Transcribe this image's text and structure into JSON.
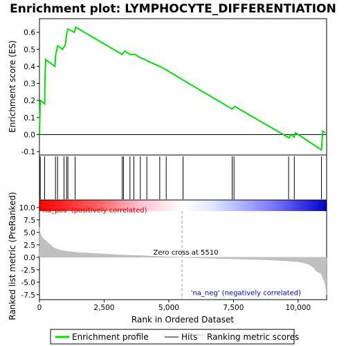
{
  "chart_data": [
    {
      "type": "line",
      "title": "Enrichment plot: LYMPHOCYTE_DIFFERENTIATION",
      "ylabel": "Enrichment score (ES)",
      "xlim": [
        0,
        11100
      ],
      "ylim": [
        -0.12,
        0.68
      ],
      "yticks": [
        -0.1,
        0.0,
        0.1,
        0.2,
        0.3,
        0.4,
        0.5,
        0.6
      ],
      "ytick_labels": [
        "-0.1",
        "0.0",
        "0.1",
        "0.2",
        "0.3",
        "0.4",
        "0.5",
        "0.6"
      ],
      "grid": false,
      "series": [
        {
          "name": "Enrichment profile",
          "color": "#00e000",
          "x": [
            0,
            30,
            50,
            200,
            210,
            240,
            600,
            620,
            700,
            900,
            1000,
            1050,
            1100,
            1350,
            1400,
            3200,
            3250,
            3300,
            3500,
            3550,
            3700,
            3900,
            4100,
            4200,
            4650,
            4900,
            5550,
            7450,
            7550,
            9650,
            9700,
            9850,
            9900,
            10900,
            10950,
            11050
          ],
          "y": [
            0.0,
            0.19,
            0.2,
            0.18,
            0.31,
            0.44,
            0.4,
            0.46,
            0.52,
            0.5,
            0.53,
            0.59,
            0.62,
            0.6,
            0.63,
            0.47,
            0.48,
            0.49,
            0.47,
            0.47,
            0.47,
            0.45,
            0.44,
            0.43,
            0.4,
            0.38,
            0.32,
            0.15,
            0.165,
            -0.02,
            0.0,
            -0.015,
            0.01,
            -0.09,
            0.02,
            0.01
          ]
        }
      ]
    },
    {
      "type": "hits",
      "xlim": [
        0,
        11100
      ],
      "hit_positions": [
        30,
        200,
        620,
        700,
        950,
        1050,
        1100,
        1380,
        3200,
        3250,
        3500,
        3650,
        3900,
        4150,
        4650,
        4900,
        5550,
        7450,
        7520,
        9630,
        9850,
        10900
      ]
    },
    {
      "type": "area",
      "xlabel": "Rank in Ordered Dataset",
      "ylabel": "Ranked list metric (PreRanked)",
      "xlim": [
        0,
        11100
      ],
      "ylim": [
        -8.5,
        11.5
      ],
      "xticks": [
        0,
        2500,
        5000,
        7500,
        10000
      ],
      "xtick_labels": [
        "0",
        "2,500",
        "5,000",
        "7,500",
        "10,000"
      ],
      "yticks": [
        -7.5,
        -5.0,
        -2.5,
        0.0,
        2.5,
        5.0,
        7.5,
        10.0
      ],
      "ytick_labels": [
        "-7.5",
        "-5.0",
        "-2.5",
        "0.0",
        "2.5",
        "5.0",
        "7.5",
        "10.0"
      ],
      "series": [
        {
          "name": "Ranking metric scores",
          "color": "#c0c0c0",
          "x": [
            0,
            20,
            50,
            100,
            200,
            300,
            400,
            500,
            600,
            700,
            800,
            900,
            1000,
            1200,
            1500,
            2000,
            2500,
            3000,
            3500,
            4000,
            4500,
            5000,
            5510,
            6000,
            6500,
            7000,
            7500,
            8000,
            8500,
            9000,
            9500,
            10000,
            10200,
            10400,
            10500,
            10600,
            10700,
            10800,
            10900,
            10950,
            11000,
            11050,
            11100
          ],
          "y": [
            6.0,
            5.2,
            4.6,
            4.1,
            3.5,
            3.1,
            2.6,
            2.1,
            1.8,
            1.6,
            1.45,
            1.35,
            1.25,
            1.1,
            0.95,
            0.8,
            0.65,
            0.5,
            0.4,
            0.3,
            0.18,
            0.08,
            0.0,
            -0.1,
            -0.18,
            -0.25,
            -0.32,
            -0.38,
            -0.45,
            -0.55,
            -0.7,
            -0.9,
            -1.1,
            -1.4,
            -1.7,
            -2.1,
            -2.8,
            -3.1,
            -3.3,
            -4.2,
            -4.6,
            -5.5,
            -7.5
          ]
        }
      ],
      "annotations": [
        {
          "text": "'na_pos' (positively correlated)",
          "color": "#cc0000",
          "x": 50,
          "y": 9.0
        },
        {
          "text": "Zero cross at 5510",
          "color": "#000000",
          "x": 4400,
          "y": 0.5,
          "line_x": 5510
        },
        {
          "text": "'na_neg' (negatively correlated)",
          "color": "#0000cc",
          "x": 5850,
          "y": -7.6
        }
      ],
      "color_bar": {
        "from_color": "#ff0000",
        "mid_color": "#ffffff",
        "to_color": "#0000ff",
        "mid_x": 5510
      }
    }
  ],
  "legend": {
    "items": [
      {
        "label": "Enrichment profile",
        "color": "#00e000",
        "style": "thick-line"
      },
      {
        "label": "Hits",
        "color": "#000000",
        "style": "thin-line"
      },
      {
        "label": "Ranking metric scores",
        "color": "#c0c0c0",
        "style": "thin-line"
      }
    ]
  }
}
